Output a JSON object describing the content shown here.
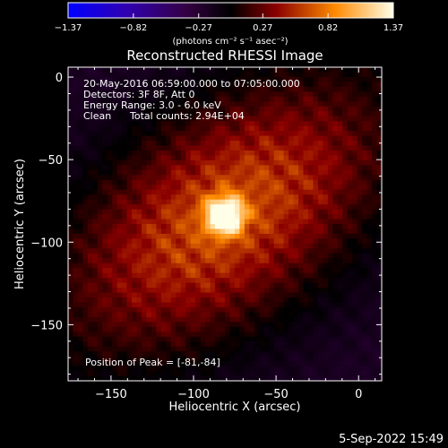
{
  "chart_data": {
    "type": "heatmap",
    "title": "Reconstructed RHESSI Image",
    "xlabel": "Heliocentric X (arcsec)",
    "ylabel": "Heliocentric Y (arcsec)",
    "xlim": [
      -176,
      14
    ],
    "ylim": [
      -184,
      6
    ],
    "xticks": [
      -150,
      -100,
      -50,
      0
    ],
    "xtick_labels": [
      "−150",
      "−100",
      "−50",
      "0"
    ],
    "yticks": [
      0,
      -50,
      -100,
      -150
    ],
    "ytick_labels": [
      "0",
      "−50",
      "−100",
      "−150"
    ],
    "peak": {
      "x": -81,
      "y": -84,
      "value": 1.37
    },
    "value_range": [
      -1.37,
      1.37
    ],
    "annotations": {
      "time_range": "20-May-2016 06:59:00.000 to 07:05:00.000",
      "detectors": "Detectors: 3F 8F, Att 0",
      "energy_range": "Energy Range: 3.0 - 6.0 keV",
      "algorithm": "Clean",
      "total_counts": "Total counts: 2.94E+04",
      "peak_position": "Position of Peak = [-81,-84]"
    },
    "colorbar": {
      "ticks": [
        -1.37,
        -0.82,
        -0.27,
        0.27,
        0.82,
        1.37
      ],
      "tick_labels": [
        "−1.37",
        "−0.82",
        "−0.27",
        "0.27",
        "0.82",
        "1.37"
      ],
      "unit_label": "(photons cm⁻² s⁻¹ asec⁻²)"
    }
  },
  "footer": {
    "date": "5-Sep-2022 15:49"
  }
}
